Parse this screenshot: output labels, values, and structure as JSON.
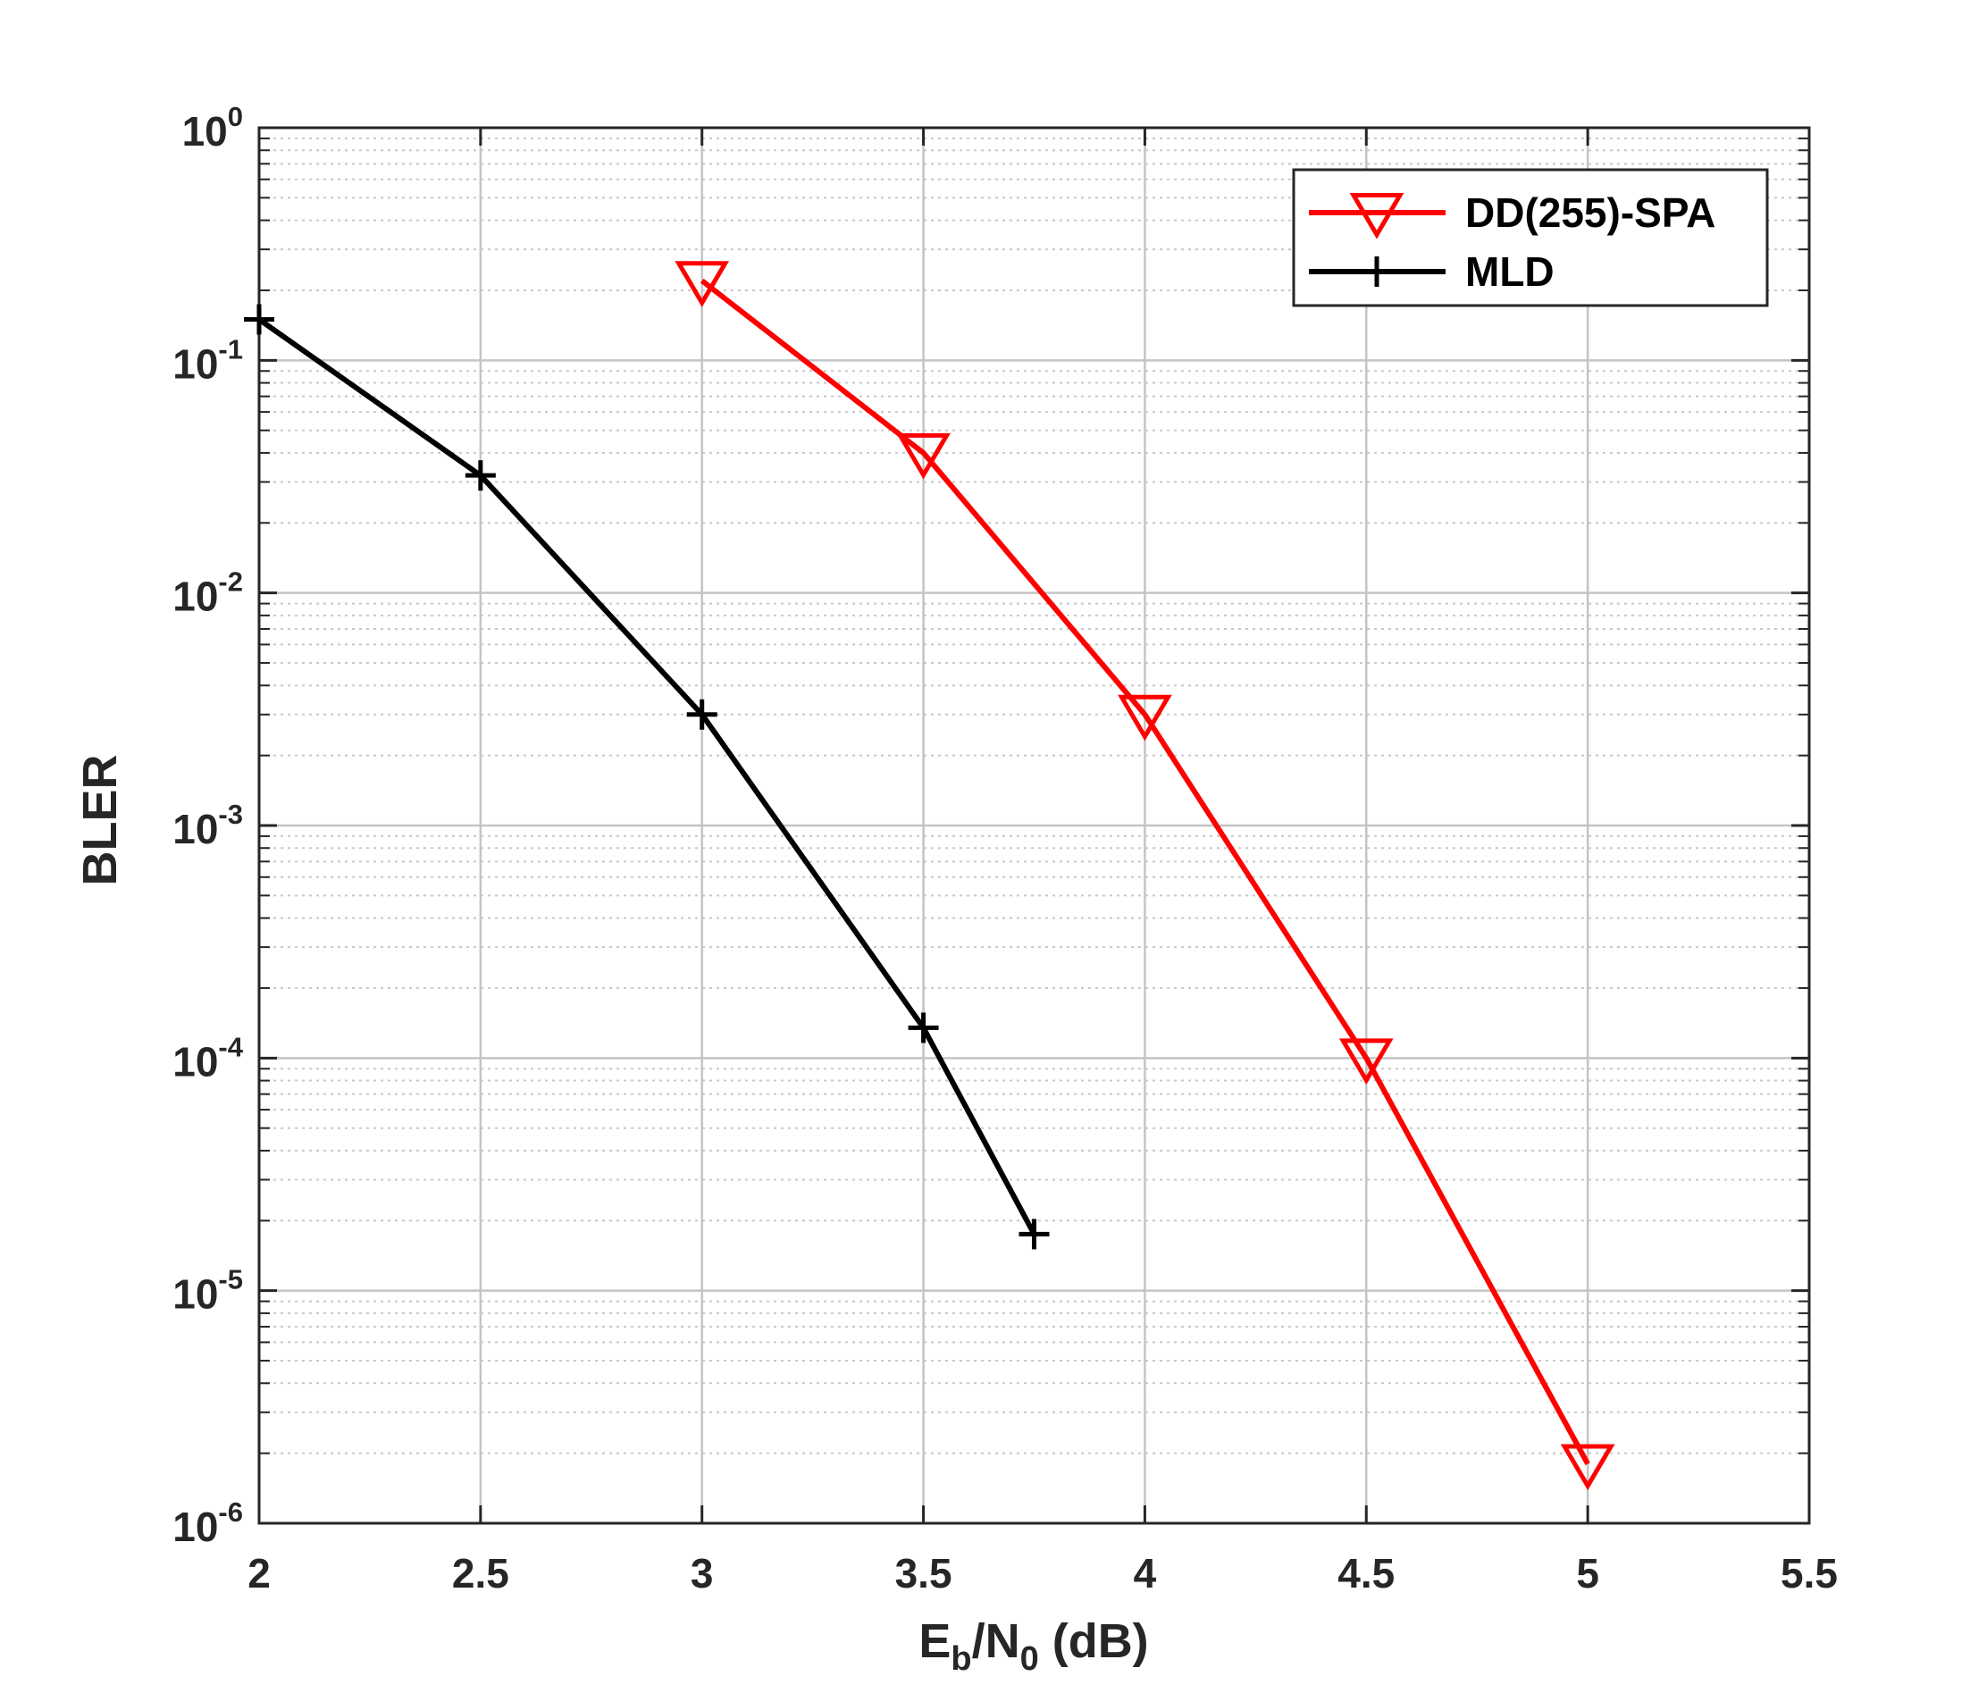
{
  "chart_data": {
    "type": "line",
    "xlabel": {
      "main": "E",
      "sub1": "b",
      "mid": "/N",
      "sub2": "0",
      "suffix": " (dB)"
    },
    "ylabel": "BLER",
    "xlim": [
      2,
      5.5
    ],
    "ylim": [
      1e-06,
      1
    ],
    "yscale": "log",
    "xticks": [
      2,
      2.5,
      3,
      3.5,
      4,
      4.5,
      5,
      5.5
    ],
    "xtick_labels": [
      "2",
      "2.5",
      "3",
      "3.5",
      "4",
      "4.5",
      "5",
      "5.5"
    ],
    "yticks": [
      {
        "value": 1,
        "base": "10",
        "exp": "0"
      },
      {
        "value": 0.1,
        "base": "10",
        "exp": "-1"
      },
      {
        "value": 0.01,
        "base": "10",
        "exp": "-2"
      },
      {
        "value": 0.001,
        "base": "10",
        "exp": "-3"
      },
      {
        "value": 0.0001,
        "base": "10",
        "exp": "-4"
      },
      {
        "value": 1e-05,
        "base": "10",
        "exp": "-5"
      },
      {
        "value": 1e-06,
        "base": "10",
        "exp": "-6"
      }
    ],
    "grid": true,
    "minor_grid": true,
    "legend_position": "top-right",
    "series": [
      {
        "name": "DD(255)-SPA",
        "color": "#ff0000",
        "marker": "triangle-down",
        "x": [
          3,
          3.5,
          4,
          4.5,
          5
        ],
        "y": [
          0.22,
          0.04,
          0.003,
          0.0001,
          1.8e-06
        ]
      },
      {
        "name": "MLD",
        "color": "#000000",
        "marker": "plus",
        "x": [
          2,
          2.5,
          3,
          3.5,
          3.75
        ],
        "y": [
          0.15,
          0.032,
          0.003,
          0.000135,
          1.75e-05
        ]
      }
    ]
  }
}
